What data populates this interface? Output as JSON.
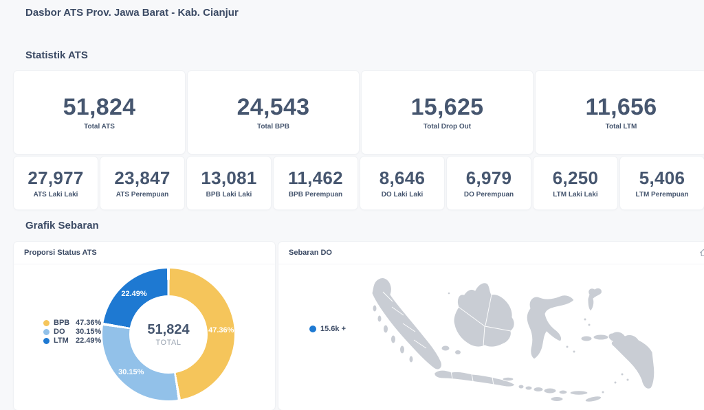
{
  "page_title": "Dasbor ATS Prov. Jawa Barat - Kab. Cianjur",
  "sections": {
    "statistik": "Statistik ATS",
    "grafik": "Grafik Sebaran"
  },
  "primary_stats": [
    {
      "value": "51,824",
      "label": "Total ATS"
    },
    {
      "value": "24,543",
      "label": "Total BPB"
    },
    {
      "value": "15,625",
      "label": "Total Drop Out"
    },
    {
      "value": "11,656",
      "label": "Total LTM"
    }
  ],
  "secondary_stats": [
    {
      "value": "27,977",
      "label": "ATS Laki Laki"
    },
    {
      "value": "23,847",
      "label": "ATS Perempuan"
    },
    {
      "value": "13,081",
      "label": "BPB Laki Laki"
    },
    {
      "value": "11,462",
      "label": "BPB Perempuan"
    },
    {
      "value": "8,646",
      "label": "DO Laki Laki"
    },
    {
      "value": "6,979",
      "label": "DO Perempuan"
    },
    {
      "value": "6,250",
      "label": "LTM Laki Laki"
    },
    {
      "value": "5,406",
      "label": "LTM Perempuan"
    }
  ],
  "colors": {
    "bpb_yellow": "#f5c55b",
    "do_light_blue": "#92c1e9",
    "ltm_blue": "#1e79d2",
    "map_gray": "#c9cdd4",
    "text_navy": "#3b4a64"
  },
  "chart_data": [
    {
      "type": "pie",
      "variant": "donut",
      "title": "Proporsi Status ATS",
      "center_value": "51,824",
      "center_label": "TOTAL",
      "legend_position": "left",
      "segments": [
        {
          "label": "BPB",
          "pct": 47.36,
          "display": "47.36%",
          "color": "#f5c55b"
        },
        {
          "label": "DO",
          "pct": 30.15,
          "display": "30.15%",
          "color": "#92c1e9"
        },
        {
          "label": "LTM",
          "pct": 22.49,
          "display": "22.49%",
          "color": "#1e79d2"
        }
      ]
    },
    {
      "type": "map",
      "title": "Sebaran DO",
      "region": "Indonesia",
      "legend": [
        {
          "label": "15.6k +",
          "color": "#1e79d2"
        }
      ]
    }
  ]
}
